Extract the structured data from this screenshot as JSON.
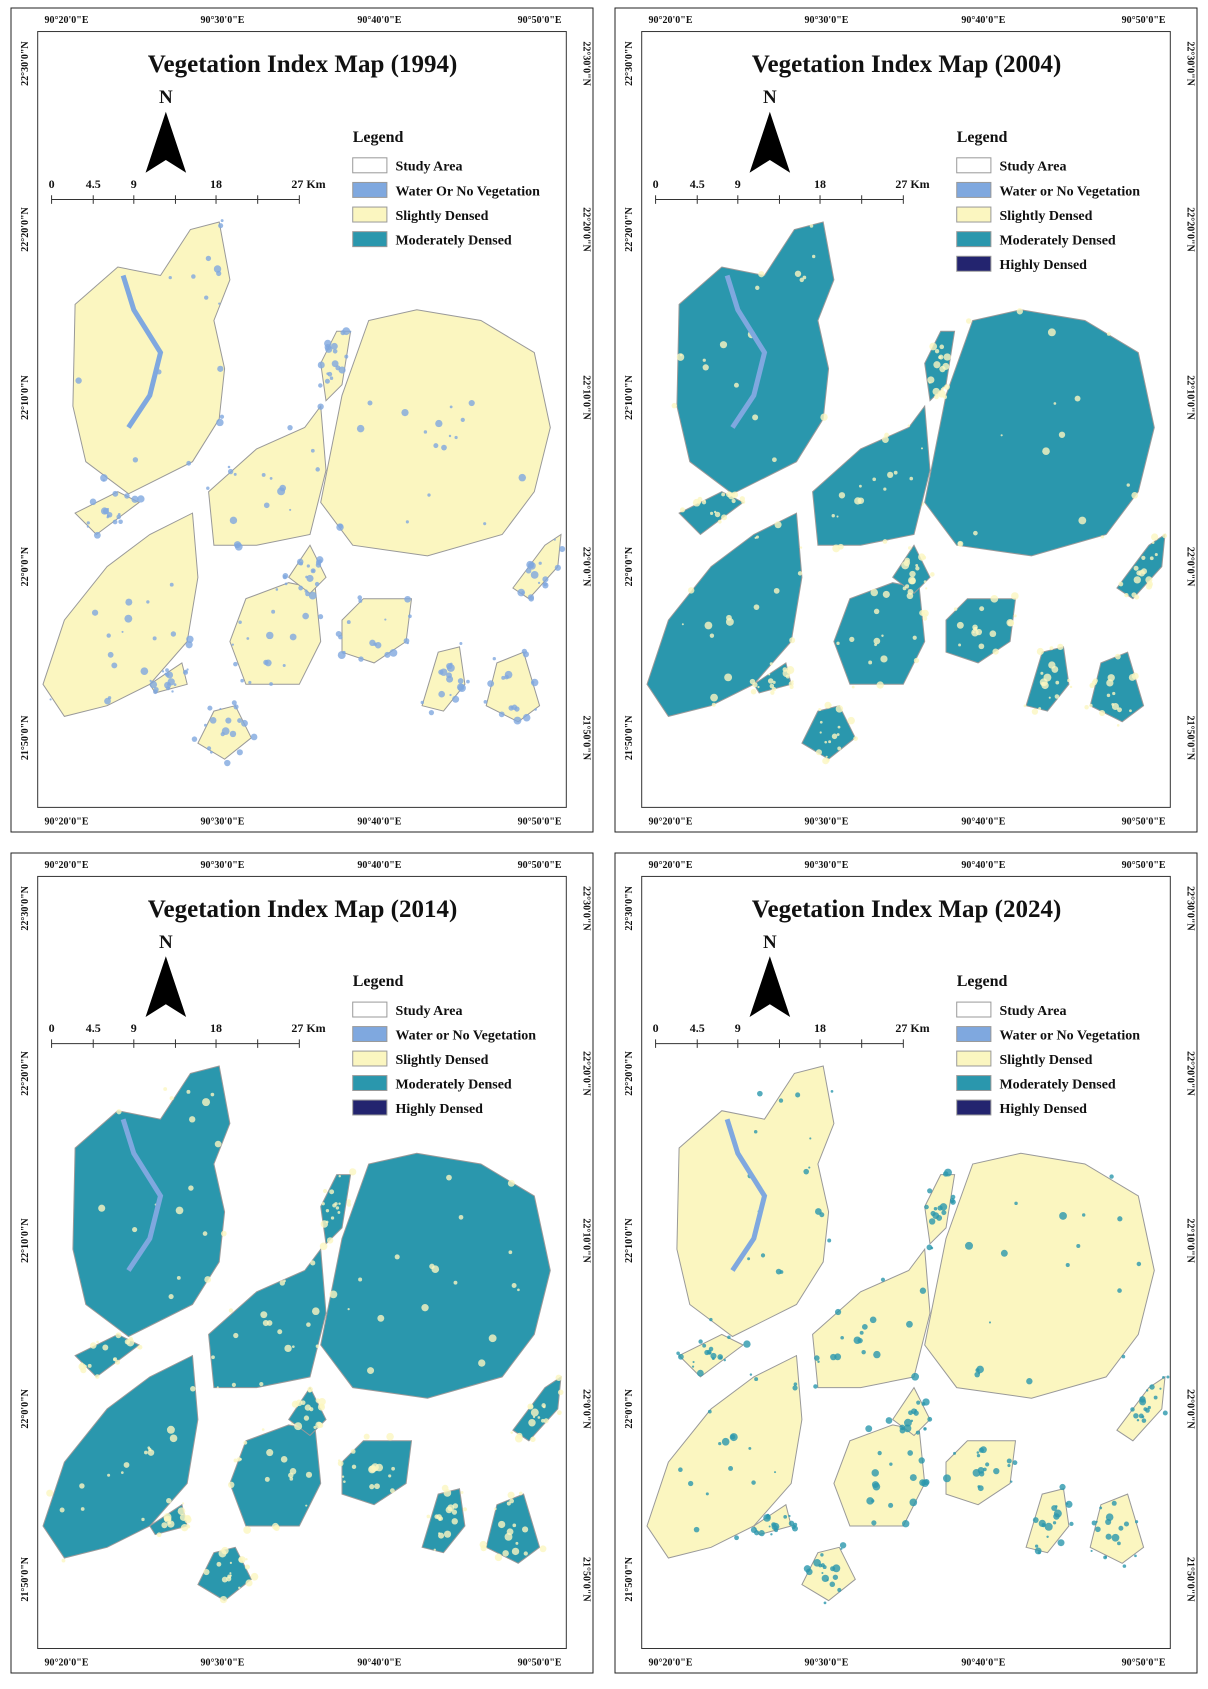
{
  "panels": [
    {
      "title": "Vegetation Index Map (1994)",
      "north": "N",
      "legend_title": "Legend",
      "legend": [
        {
          "label": "Study Area",
          "color": "#ffffff"
        },
        {
          "label": "Water Or No Vegetation",
          "color": "#7fa8df"
        },
        {
          "label": "Slightly Densed",
          "color": "#fbf6c0"
        },
        {
          "label": "Moderately Densed",
          "color": "#2a97ad"
        }
      ],
      "scale_labels": [
        "0",
        "4.5",
        "9",
        "18",
        "27 Km"
      ],
      "lon_labels": [
        "90°20'0\"E",
        "90°30'0\"E",
        "90°40'0\"E",
        "90°50'0\"E"
      ],
      "lat_labels": [
        "22°30'0\"N",
        "22°20'0\"N",
        "22°10'0\"N",
        "22°0'0\"N",
        "21°50'0\"N"
      ]
    },
    {
      "title": "Vegetation Index Map (2004)",
      "north": "N",
      "legend_title": "Legend",
      "legend": [
        {
          "label": "Study Area",
          "color": "#ffffff"
        },
        {
          "label": "Water or No Vegetation",
          "color": "#7fa8df"
        },
        {
          "label": "Slightly Densed",
          "color": "#fbf6c0"
        },
        {
          "label": "Moderately Densed",
          "color": "#2a97ad"
        },
        {
          "label": "Highly Densed",
          "color": "#23246f"
        }
      ],
      "scale_labels": [
        "0",
        "4.5",
        "9",
        "18",
        "27 Km"
      ],
      "lon_labels": [
        "90°20'0\"E",
        "90°30'0\"E",
        "90°40'0\"E",
        "90°50'0\"E"
      ],
      "lat_labels": [
        "22°30'0\"N",
        "22°20'0\"N",
        "22°10'0\"N",
        "22°0'0\"N",
        "21°50'0\"N"
      ]
    },
    {
      "title": "Vegetation Index Map (2014)",
      "north": "N",
      "legend_title": "Legend",
      "legend": [
        {
          "label": "Study Area",
          "color": "#ffffff"
        },
        {
          "label": "Water or No Vegetation",
          "color": "#7fa8df"
        },
        {
          "label": "Slightly Densed",
          "color": "#fbf6c0"
        },
        {
          "label": "Moderately Densed",
          "color": "#2a97ad"
        },
        {
          "label": "Highly Densed",
          "color": "#23246f"
        }
      ],
      "scale_labels": [
        "0",
        "4.5",
        "9",
        "18",
        "27 Km"
      ],
      "lon_labels": [
        "90°20'0\"E",
        "90°30'0\"E",
        "90°40'0\"E",
        "90°50'0\"E"
      ],
      "lat_labels": [
        "22°30'0\"N",
        "22°20'0\"N",
        "22°10'0\"N",
        "22°0'0\"N",
        "21°50'0\"N"
      ]
    },
    {
      "title": "Vegetation Index Map (2024)",
      "north": "N",
      "legend_title": "Legend",
      "legend": [
        {
          "label": "Study Area",
          "color": "#ffffff"
        },
        {
          "label": "Water or No Vegetation",
          "color": "#7fa8df"
        },
        {
          "label": "Slightly Densed",
          "color": "#fbf6c0"
        },
        {
          "label": "Moderately Densed",
          "color": "#2a97ad"
        },
        {
          "label": "Highly Densed",
          "color": "#23246f"
        }
      ],
      "scale_labels": [
        "0",
        "4.5",
        "9",
        "18",
        "27 Km"
      ],
      "lon_labels": [
        "90°20'0\"E",
        "90°30'0\"E",
        "90°40'0\"E",
        "90°50'0\"E"
      ],
      "lat_labels": [
        "22°30'0\"N",
        "22°20'0\"N",
        "22°10'0\"N",
        "22°0'0\"N",
        "21°50'0\"N"
      ]
    }
  ]
}
